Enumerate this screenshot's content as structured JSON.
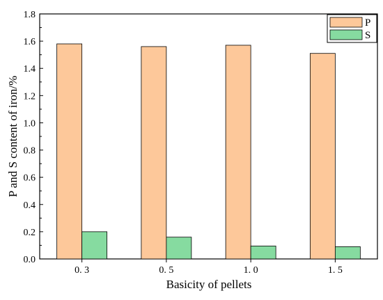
{
  "chart_data": {
    "type": "bar",
    "categories": [
      "0.3",
      "0.5",
      "1.0",
      "1.5"
    ],
    "category_labels": [
      "0. 3",
      "0. 5",
      "1. 0",
      "1. 5"
    ],
    "series": [
      {
        "name": "P",
        "values": [
          1.58,
          1.56,
          1.57,
          1.51
        ],
        "color": "#fdc89a"
      },
      {
        "name": "S",
        "values": [
          0.2,
          0.16,
          0.095,
          0.09
        ],
        "color": "#86dba0"
      }
    ],
    "title": "",
    "xlabel": "Basicity of pellets",
    "ylabel": "P and S content of iron/%",
    "ylim": [
      0,
      1.8
    ],
    "yticks": [
      "0.0",
      "0.2",
      "0.4",
      "0.6",
      "0.8",
      "1.0",
      "1.2",
      "1.4",
      "1.6",
      "1.8"
    ],
    "grid": false,
    "legend_position": "top-right"
  }
}
